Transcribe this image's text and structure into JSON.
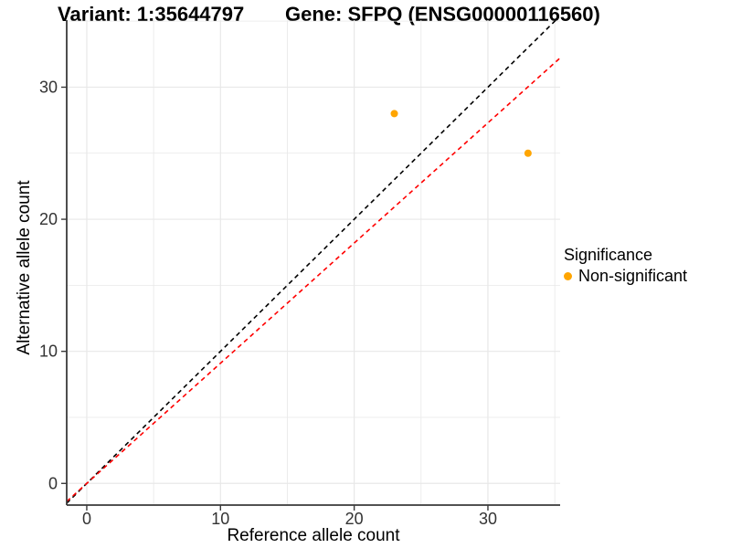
{
  "titles": {
    "variant": "Variant: 1:35644797",
    "gene": "Gene: SFPQ (ENSG00000116560)"
  },
  "axes": {
    "x": {
      "label": "Reference allele count"
    },
    "y": {
      "label": "Alternative allele count"
    }
  },
  "legend": {
    "title": "Significance",
    "items": [
      {
        "label": "Non-significant",
        "color": "#FFA500"
      }
    ]
  },
  "chart_data": {
    "type": "scatter",
    "points": [
      {
        "x": 23,
        "y": 28,
        "series": "Non-significant"
      },
      {
        "x": 33,
        "y": 25,
        "series": "Non-significant"
      }
    ],
    "point_color": "#FFA500",
    "point_radius": 4,
    "lines": [
      {
        "name": "identity",
        "slope": 1,
        "intercept": 0,
        "color": "#000000",
        "dash": "dashed"
      },
      {
        "name": "expected-ratio",
        "slope": 0.91,
        "intercept": 0,
        "color": "#FF0000",
        "dash": "dashed"
      }
    ],
    "xlabel": "Reference allele count",
    "ylabel": "Alternative allele count",
    "xticks": [
      0,
      10,
      20,
      30
    ],
    "yticks": [
      0,
      10,
      20,
      30
    ],
    "xminor": [
      5,
      15,
      25,
      35
    ],
    "yminor": [
      5,
      15,
      25,
      35
    ],
    "xlim": [
      -1.5,
      35.4
    ],
    "ylim": [
      -1.64,
      35.08
    ],
    "grid": true,
    "legend_position": "right"
  },
  "style": {
    "grid_color": "#E8E8E8",
    "axis_color": "#3A3A3A",
    "tick_label_color": "#333333"
  }
}
